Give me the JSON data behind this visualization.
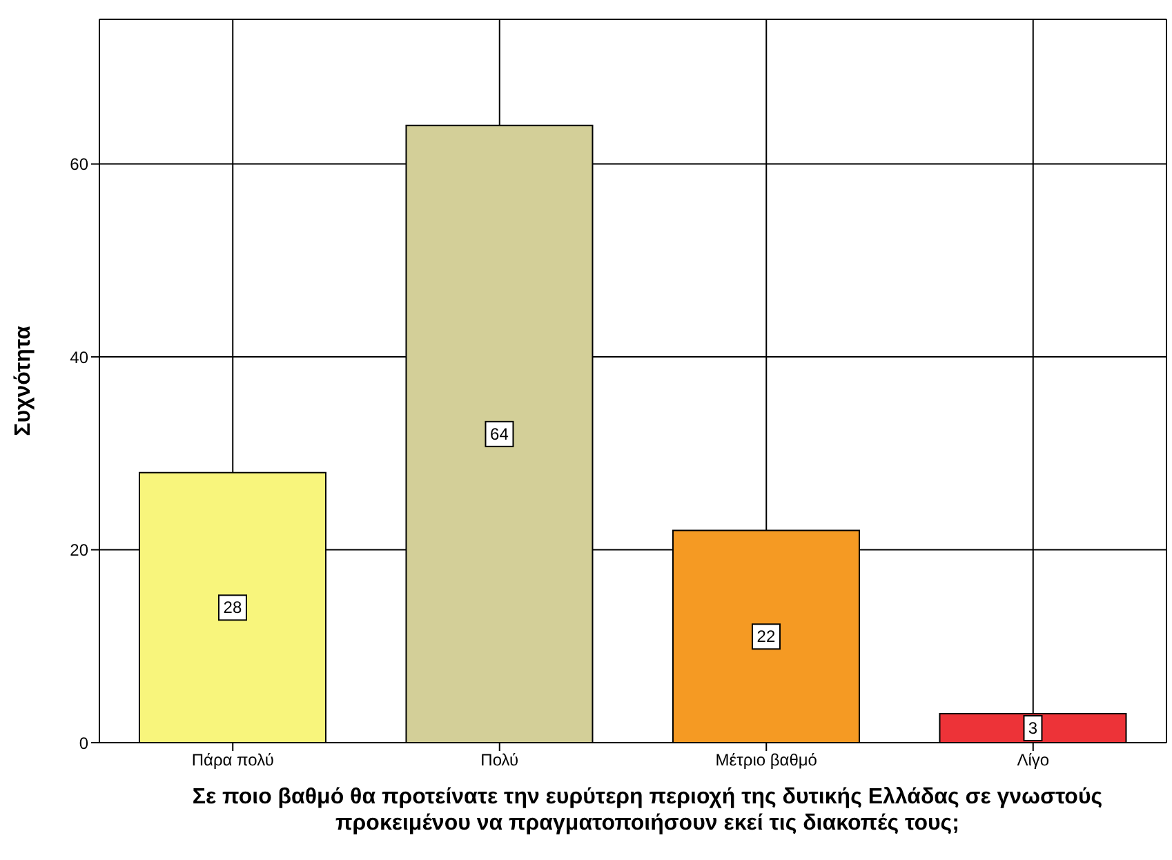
{
  "chart_data": {
    "type": "bar",
    "xlabel": "Σε ποιο βαθμό θα προτείνατε την ευρύτερη περιοχή της δυτικής Ελλάδας σε γνωστούς προκειμένου να πραγματοποιήσουν εκεί τις διακοπές τους;",
    "ylabel": "Συχνότητα",
    "categories": [
      "Πάρα πολύ",
      "Πολύ",
      "Μέτριο βαθμό",
      "Λίγο"
    ],
    "values": [
      28,
      64,
      22,
      3
    ],
    "colors": [
      "#f8f57c",
      "#d3cf98",
      "#f59a23",
      "#ed3338"
    ],
    "ylim": [
      0,
      75
    ],
    "yticks": [
      0,
      20,
      40,
      60
    ],
    "grid": true,
    "data_labels": true
  }
}
